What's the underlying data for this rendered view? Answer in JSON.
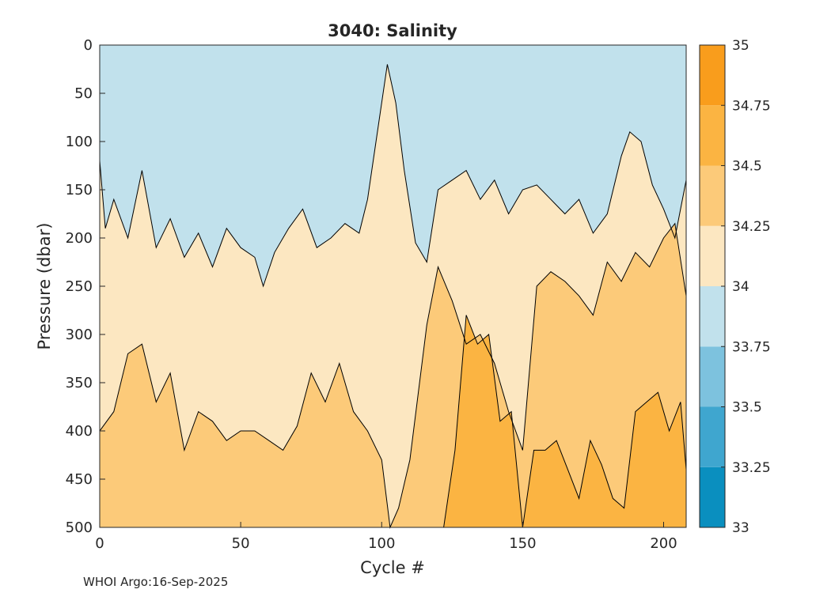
{
  "chart_data": {
    "type": "heatmap",
    "title": "3040:  Salinity",
    "xlabel": "Cycle #",
    "ylabel": "Pressure (dbar)",
    "xlim": [
      0,
      208
    ],
    "ylim": [
      0,
      500
    ],
    "x_ticks": [
      0,
      50,
      100,
      150,
      200
    ],
    "x_tick_labels": [
      "0",
      "50",
      "100",
      "150",
      "200"
    ],
    "y_ticks": [
      0,
      50,
      100,
      150,
      200,
      250,
      300,
      350,
      400,
      450,
      500
    ],
    "y_tick_labels": [
      "0",
      "50",
      "100",
      "150",
      "200",
      "250",
      "300",
      "350",
      "400",
      "450",
      "500"
    ],
    "colorbar": {
      "min": 33,
      "max": 35,
      "levels": [
        33,
        33.25,
        33.5,
        33.75,
        34,
        34.25,
        34.5,
        34.75,
        35
      ],
      "tick_labels": [
        "33",
        "33.25",
        "33.5",
        "33.75",
        "34",
        "34.25",
        "34.5",
        "34.75",
        "35"
      ],
      "colors": [
        "#0a8fbf",
        "#3fa6cf",
        "#7dc2de",
        "#c1e1ec",
        "#fce7c1",
        "#fcca79",
        "#fbb442",
        "#f99d1c"
      ]
    },
    "contours": [
      {
        "level": 34.0,
        "x": [
          0,
          2,
          5,
          10,
          15,
          20,
          25,
          30,
          35,
          40,
          45,
          50,
          55,
          58,
          62,
          67,
          72,
          77,
          82,
          87,
          92,
          95,
          98,
          102,
          105,
          108,
          112,
          116,
          120,
          125,
          130,
          135,
          140,
          145,
          150,
          155,
          160,
          165,
          170,
          175,
          180,
          185,
          188,
          192,
          196,
          200,
          204,
          208
        ],
        "y": [
          120,
          190,
          160,
          200,
          130,
          210,
          180,
          220,
          195,
          230,
          190,
          210,
          220,
          250,
          215,
          190,
          170,
          210,
          200,
          185,
          195,
          160,
          100,
          20,
          60,
          130,
          205,
          225,
          150,
          140,
          130,
          160,
          140,
          175,
          150,
          145,
          160,
          175,
          160,
          195,
          175,
          115,
          90,
          100,
          145,
          170,
          200,
          140
        ]
      },
      {
        "level": 34.25,
        "x": [
          0,
          5,
          10,
          15,
          20,
          25,
          30,
          35,
          40,
          45,
          50,
          55,
          60,
          65,
          70,
          75,
          80,
          85,
          90,
          95,
          100,
          103,
          106,
          110,
          113,
          116,
          120,
          125,
          130,
          135,
          140,
          145,
          150,
          155,
          160,
          165,
          170,
          175,
          180,
          185,
          190,
          195,
          200,
          204,
          208
        ],
        "y": [
          400,
          380,
          320,
          310,
          370,
          340,
          420,
          380,
          390,
          410,
          400,
          400,
          410,
          420,
          395,
          340,
          370,
          330,
          380,
          400,
          430,
          500,
          480,
          430,
          360,
          290,
          230,
          265,
          310,
          300,
          330,
          380,
          420,
          250,
          235,
          245,
          260,
          280,
          225,
          245,
          215,
          230,
          200,
          185,
          260
        ]
      },
      {
        "level": 34.5,
        "x": [
          122,
          126,
          130,
          134,
          138,
          142,
          146,
          150,
          154,
          158,
          162,
          166,
          170,
          174,
          178,
          182,
          186,
          190,
          194,
          198,
          202,
          206,
          208
        ],
        "y": [
          500,
          420,
          280,
          310,
          300,
          390,
          380,
          500,
          420,
          420,
          410,
          440,
          470,
          410,
          435,
          470,
          480,
          380,
          370,
          360,
          400,
          370,
          440
        ]
      }
    ]
  },
  "footer": {
    "text": "WHOI Argo:16-Sep-2025"
  }
}
